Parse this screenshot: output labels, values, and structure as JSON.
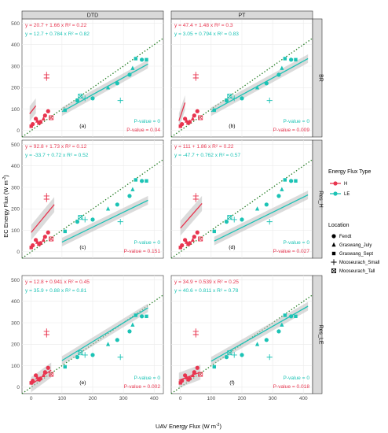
{
  "chart_data": {
    "type": "scatter",
    "facets": {
      "columns": [
        "DTD",
        "PT"
      ],
      "rows": [
        "BR",
        "Res_H",
        "Res_LE"
      ]
    },
    "xlabel": "UAV Energy Flux (W m",
    "ylabel": "EC Energy Flux (W m",
    "unit_suffix": ")",
    "unit_power": "-2",
    "xlim": [
      -30,
      430
    ],
    "ylim": [
      -30,
      520
    ],
    "x_ticks": [
      0,
      100,
      200,
      300,
      400
    ],
    "y_ticks": [
      0,
      100,
      200,
      300,
      400,
      500
    ],
    "colors": {
      "H": "#e8354f",
      "LE": "#1cc3b5",
      "one_to_one": "#1e7a1e"
    },
    "legend": {
      "title1": "Energy Flux Type",
      "types": [
        "H",
        "LE"
      ],
      "title2": "Location",
      "locations": [
        "Fendt",
        "Graswang_July",
        "Graswang_Sept",
        "Mooseurach_Small",
        "Mooseurach_Tall"
      ]
    },
    "panels": [
      {
        "label": "(a)",
        "eq_H": "y = 20.7 + 1.66 x  R² = 0.22",
        "eq_LE": "y = 12.7 + 0.784 x  R² = 0.82",
        "p_LE": "P-value = 0",
        "p_H": "P-value = 0.04",
        "H_fit": [
          -5,
          78,
          15,
          115
        ],
        "LE_fit": [
          100,
          88,
          380,
          310
        ]
      },
      {
        "label": "(b)",
        "eq_H": "y = 47.4 + 1.48 x  R² = 0.3",
        "eq_LE": "y = 3.05 + 0.794 x  R² = 0.83",
        "p_LE": "P-value = 0",
        "p_H": "P-value = 0.009",
        "H_fit": [
          -5,
          45,
          15,
          130
        ],
        "LE_fit": [
          100,
          88,
          415,
          335
        ]
      },
      {
        "label": "(c)",
        "eq_H": "y = 92.8 + 1.73 x  R² = 0.12",
        "eq_LE": "y = -33.7 + 0.72 x  R² = 0.52",
        "p_LE": "P-value = 0",
        "p_H": "P-value = 0.151",
        "H_fit": [
          0,
          90,
          75,
          220
        ],
        "LE_fit": [
          100,
          45,
          380,
          240
        ]
      },
      {
        "label": "(d)",
        "eq_H": "y = 111 + 1.86 x  R² = 0.22",
        "eq_LE": "y = -47.7 + 0.762 x  R² = 0.57",
        "p_LE": "P-value = 0",
        "p_H": "P-value = 0.027",
        "H_fit": [
          0,
          110,
          70,
          225
        ],
        "LE_fit": [
          110,
          50,
          415,
          265
        ]
      },
      {
        "label": "(e)",
        "eq_H": "y = 12.8 + 0.941 x  R² = 0.45",
        "eq_LE": "y = 35.9 + 0.88 x  R² = 0.81",
        "p_LE": "P-value = 0",
        "p_H": "P-value = 0.002",
        "H_fit": [
          0,
          12,
          65,
          80
        ],
        "LE_fit": [
          100,
          124,
          380,
          370
        ]
      },
      {
        "label": "(f)",
        "eq_H": "y = 34.9 + 0.539 x  R² = 0.25",
        "eq_LE": "y = 40.6 + 0.811 x  R² = 0.78",
        "p_LE": "P-value = 0",
        "p_H": "P-value = 0.018",
        "H_fit": [
          -5,
          32,
          65,
          70
        ],
        "LE_fit": [
          100,
          121,
          415,
          377
        ]
      }
    ],
    "points": {
      "H": [
        {
          "loc": "Fendt",
          "x": 5,
          "y": 30
        },
        {
          "loc": "Fendt",
          "x": 15,
          "y": 55
        },
        {
          "loc": "Fendt",
          "x": 30,
          "y": 40
        },
        {
          "loc": "Fendt",
          "x": 45,
          "y": 70
        },
        {
          "loc": "Fendt",
          "x": 55,
          "y": 90
        },
        {
          "loc": "Graswang_July",
          "x": 20,
          "y": 45
        },
        {
          "loc": "Graswang_July",
          "x": 40,
          "y": 55
        },
        {
          "loc": "Graswang_Sept",
          "x": 0,
          "y": 20
        },
        {
          "loc": "Graswang_Sept",
          "x": 25,
          "y": 35
        },
        {
          "loc": "Mooseurach_Small",
          "x": 50,
          "y": 260
        },
        {
          "loc": "Mooseurach_Small",
          "x": 50,
          "y": 245
        },
        {
          "loc": "Mooseurach_Tall",
          "x": 65,
          "y": 60
        }
      ],
      "LE": [
        {
          "loc": "Fendt",
          "x": 150,
          "y": 140
        },
        {
          "loc": "Fendt",
          "x": 200,
          "y": 150
        },
        {
          "loc": "Fendt",
          "x": 280,
          "y": 220
        },
        {
          "loc": "Fendt",
          "x": 320,
          "y": 260
        },
        {
          "loc": "Fendt",
          "x": 360,
          "y": 330
        },
        {
          "loc": "Graswang_July",
          "x": 250,
          "y": 200
        },
        {
          "loc": "Graswang_July",
          "x": 330,
          "y": 290
        },
        {
          "loc": "Graswang_Sept",
          "x": 110,
          "y": 95
        },
        {
          "loc": "Graswang_Sept",
          "x": 340,
          "y": 335
        },
        {
          "loc": "Graswang_Sept",
          "x": 375,
          "y": 330
        },
        {
          "loc": "Mooseurach_Small",
          "x": 290,
          "y": 140
        },
        {
          "loc": "Mooseurach_Small",
          "x": 175,
          "y": 150
        },
        {
          "loc": "Mooseurach_Tall",
          "x": 160,
          "y": 160
        }
      ]
    }
  }
}
